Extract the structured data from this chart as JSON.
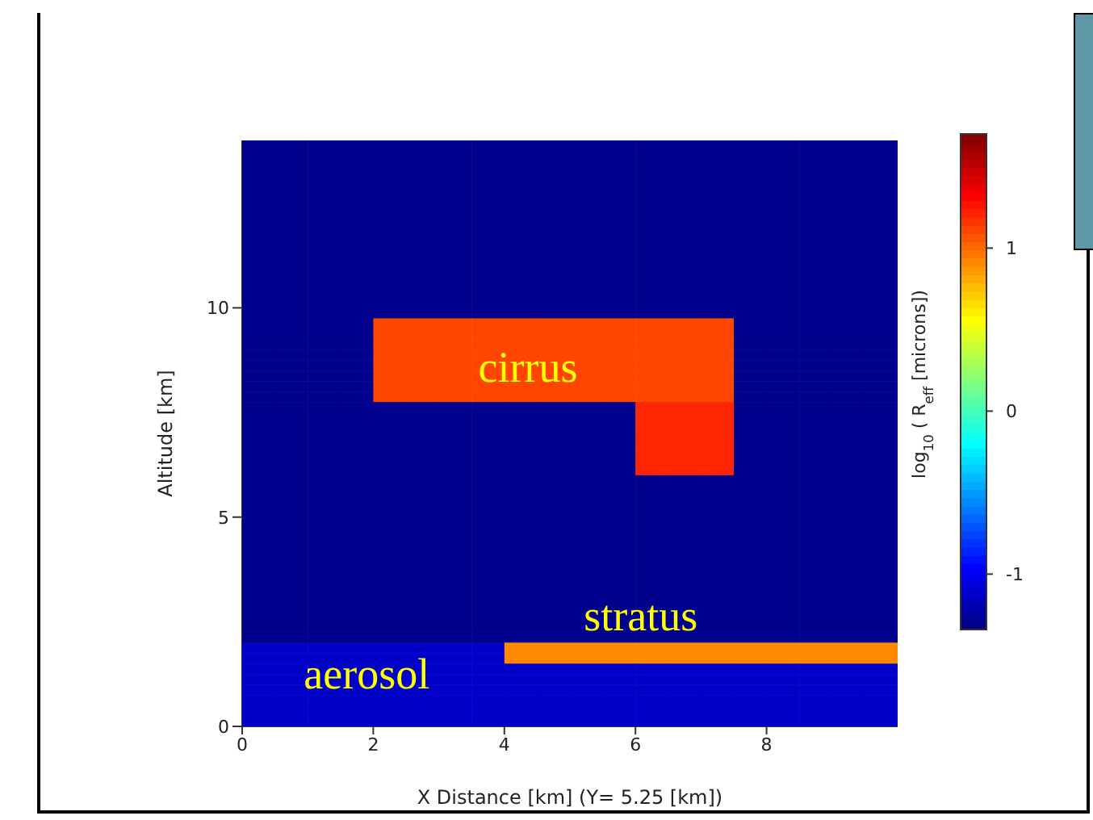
{
  "chart_data": {
    "type": "heatmap",
    "xlabel": "X Distance [km] (Y=  5.25 [km])",
    "ylabel": "Altitude [km]",
    "clabel": "log$_{10}$( R$_{eff}$[microns])",
    "xlim": [
      0,
      10
    ],
    "xticks": [
      0,
      2,
      4,
      6,
      8
    ],
    "ylim": [
      0,
      14
    ],
    "yticks": [
      0,
      5,
      10
    ],
    "clim": [
      -1.34,
      1.7
    ],
    "cticks": [
      -1,
      0,
      1
    ],
    "grid": false,
    "legend": false,
    "annotations": [
      "cirrus",
      "stratus",
      "aerosol"
    ],
    "cells": [
      [
        -1.3,
        -1.3,
        -1.3,
        -1.3,
        -1.3,
        -1.3,
        -1.3,
        -1.3,
        -1.3,
        -1.3,
        -1.3,
        -1.3,
        -1.3,
        -1.3,
        -1.3,
        -1.3,
        -1.3,
        -1.3,
        -1.3,
        -1.3
      ],
      [
        -1.3,
        -1.3,
        -1.3,
        -1.3,
        -1.3,
        -1.3,
        -1.3,
        -1.3,
        -1.3,
        -1.3,
        -1.3,
        -1.3,
        -1.3,
        -1.3,
        -1.3,
        -1.3,
        -1.3,
        -1.3,
        -1.3,
        -1.3
      ],
      [
        -1.3,
        -1.3,
        -1.3,
        -1.3,
        -1.3,
        -1.3,
        -1.3,
        -1.3,
        -1.3,
        -1.3,
        -1.3,
        -1.3,
        -1.3,
        -1.3,
        -1.3,
        -1.3,
        -1.3,
        -1.3,
        -1.3,
        -1.3
      ],
      [
        -1.3,
        -1.3,
        -1.3,
        -1.3,
        -1.3,
        -1.3,
        -1.3,
        -1.3,
        -1.3,
        -1.3,
        -1.3,
        -1.3,
        -1.3,
        -1.3,
        -1.3,
        -1.3,
        -1.3,
        -1.3,
        -1.3,
        -1.3
      ],
      [
        -1.3,
        -1.3,
        -1.3,
        -1.3,
        -1.3,
        -1.3,
        -1.3,
        -1.3,
        -1.3,
        -1.3,
        -1.3,
        -1.3,
        -1.3,
        -1.3,
        -1.3,
        -1.3,
        -1.3,
        -1.3,
        -1.3,
        -1.3
      ],
      [
        -1.3,
        -1.3,
        -1.3,
        -1.3,
        -1.3,
        -1.3,
        -1.3,
        -1.3,
        -1.3,
        -1.3,
        -1.3,
        -1.3,
        -1.3,
        -1.3,
        -1.3,
        -1.3,
        -1.3,
        -1.3,
        -1.3,
        -1.3
      ],
      [
        -1.3,
        -1.3,
        -1.3,
        -1.3,
        -1.3,
        -1.3,
        -1.3,
        -1.3,
        -1.3,
        -1.3,
        -1.3,
        -1.3,
        -1.3,
        -1.3,
        -1.3,
        -1.3,
        -1.3,
        -1.3,
        -1.3,
        -1.3
      ],
      [
        -1.3,
        -1.3,
        -1.3,
        -1.3,
        -1.3,
        -1.3,
        -1.3,
        -1.3,
        -1.3,
        -1.3,
        -1.3,
        -1.3,
        -1.3,
        -1.3,
        -1.3,
        -1.3,
        -1.3,
        -1.3,
        -1.3,
        -1.3
      ],
      [
        -1.3,
        -1.3,
        -1.3,
        -1.3,
        -1.3,
        -1.3,
        -1.3,
        -1.3,
        -1.3,
        -1.3,
        -1.3,
        -1.3,
        -1.3,
        -1.3,
        -1.3,
        -1.3,
        -1.3,
        -1.3,
        -1.3,
        -1.3
      ],
      [
        -1.3,
        -1.3,
        -1.3,
        -1.3,
        -1.3,
        -1.3,
        -1.3,
        -1.3,
        -1.3,
        -1.3,
        -1.3,
        -1.3,
        -1.3,
        -1.3,
        -1.3,
        -1.3,
        -1.3,
        -1.3,
        -1.3,
        -1.3
      ],
      [
        -1.3,
        -1.3,
        -1.3,
        -1.3,
        -1.3,
        -1.3,
        -1.3,
        -1.3,
        -1.3,
        -1.3,
        -1.3,
        -1.3,
        -1.3,
        -1.3,
        -1.3,
        -1.3,
        -1.3,
        -1.3,
        -1.3,
        -1.3
      ],
      [
        -1.3,
        -1.3,
        -1.3,
        -1.3,
        -1.3,
        -1.3,
        -1.3,
        -1.3,
        -1.3,
        -1.3,
        -1.3,
        -1.3,
        -1.3,
        -1.3,
        -1.3,
        -1.3,
        -1.3,
        -1.3,
        -1.3,
        -1.3
      ],
      [
        -1.3,
        -1.3,
        -1.3,
        -1.3,
        -1.3,
        -1.3,
        -1.3,
        -1.3,
        -1.3,
        -1.3,
        -1.3,
        -1.3,
        -1.3,
        -1.3,
        -1.3,
        -1.3,
        -1.3,
        -1.3,
        -1.3,
        -1.3
      ],
      [
        -1.3,
        -1.3,
        -1.3,
        -1.3,
        -1.3,
        -1.3,
        -1.3,
        -1.3,
        -1.3,
        -1.3,
        -1.3,
        -1.3,
        -1.3,
        -1.3,
        -1.3,
        -1.3,
        -1.3,
        -1.3,
        -1.3,
        -1.3
      ],
      [
        -1.3,
        -1.3,
        -1.3,
        -1.3,
        -1.3,
        -1.3,
        -1.3,
        -1.3,
        -1.3,
        -1.3,
        -1.3,
        -1.3,
        -1.3,
        -1.3,
        -1.3,
        -1.3,
        -1.3,
        -1.3,
        -1.3,
        -1.3
      ],
      [
        -1.3,
        -1.3,
        -1.3,
        -1.3,
        -1.3,
        -1.3,
        -1.3,
        -1.3,
        -1.3,
        -1.3,
        -1.3,
        -1.3,
        -1.3,
        -1.3,
        -1.3,
        -1.3,
        -1.3,
        -1.3,
        -1.3,
        -1.3
      ],
      [
        -1.3,
        -1.3,
        -1.3,
        -1.3,
        -1.3,
        -1.3,
        -1.3,
        -1.3,
        -1.3,
        -1.3,
        -1.3,
        -1.3,
        -1.3,
        -1.3,
        -1.3,
        -1.3,
        -1.3,
        -1.3,
        -1.3,
        -1.3
      ],
      [
        -1.3,
        -1.3,
        -1.3,
        -1.3,
        1.11,
        1.11,
        1.11,
        1.11,
        1.11,
        1.11,
        1.11,
        1.11,
        1.11,
        1.11,
        1.11,
        -1.3,
        -1.3,
        -1.3,
        -1.3,
        -1.3
      ],
      [
        -1.3,
        -1.3,
        -1.3,
        -1.3,
        1.11,
        1.11,
        1.11,
        1.11,
        1.11,
        1.11,
        1.11,
        1.11,
        1.11,
        1.11,
        1.11,
        -1.3,
        -1.3,
        -1.3,
        -1.3,
        -1.3
      ],
      [
        -1.3,
        -1.3,
        -1.3,
        -1.3,
        1.11,
        1.11,
        1.11,
        1.11,
        1.11,
        1.11,
        1.11,
        1.11,
        1.11,
        1.11,
        1.11,
        -1.3,
        -1.3,
        -1.3,
        -1.3,
        -1.3
      ],
      [
        -1.3,
        -1.3,
        -1.3,
        -1.3,
        1.11,
        1.11,
        1.11,
        1.11,
        1.11,
        1.11,
        1.11,
        1.11,
        1.11,
        1.11,
        1.11,
        -1.3,
        -1.3,
        -1.3,
        -1.3,
        -1.3
      ],
      [
        -1.3,
        -1.3,
        -1.3,
        -1.3,
        1.11,
        1.11,
        1.11,
        1.11,
        1.11,
        1.11,
        1.11,
        1.11,
        1.11,
        1.11,
        1.11,
        -1.3,
        -1.3,
        -1.3,
        -1.3,
        -1.3
      ],
      [
        -1.3,
        -1.3,
        -1.3,
        -1.3,
        1.11,
        1.11,
        1.11,
        1.11,
        1.11,
        1.11,
        1.11,
        1.11,
        1.11,
        1.11,
        1.11,
        -1.3,
        -1.3,
        -1.3,
        -1.3,
        -1.3
      ],
      [
        -1.3,
        -1.3,
        -1.3,
        -1.3,
        1.11,
        1.11,
        1.11,
        1.11,
        1.11,
        1.11,
        1.11,
        1.11,
        1.11,
        1.11,
        1.11,
        -1.3,
        -1.3,
        -1.3,
        -1.3,
        -1.3
      ],
      [
        -1.3,
        -1.3,
        -1.3,
        -1.3,
        1.11,
        1.11,
        1.11,
        1.11,
        1.11,
        1.11,
        1.11,
        1.11,
        1.11,
        1.11,
        1.11,
        -1.3,
        -1.3,
        -1.3,
        -1.3,
        -1.3
      ],
      [
        -1.3,
        -1.3,
        -1.3,
        -1.3,
        -1.3,
        -1.3,
        -1.3,
        -1.3,
        -1.3,
        -1.3,
        -1.3,
        -1.3,
        1.21,
        1.21,
        1.21,
        -1.3,
        -1.3,
        -1.3,
        -1.3,
        -1.3
      ],
      [
        -1.3,
        -1.3,
        -1.3,
        -1.3,
        -1.3,
        -1.3,
        -1.3,
        -1.3,
        -1.3,
        -1.3,
        -1.3,
        -1.3,
        1.21,
        1.21,
        1.21,
        -1.3,
        -1.3,
        -1.3,
        -1.3,
        -1.3
      ],
      [
        -1.3,
        -1.3,
        -1.3,
        -1.3,
        -1.3,
        -1.3,
        -1.3,
        -1.3,
        -1.3,
        -1.3,
        -1.3,
        -1.3,
        1.21,
        1.21,
        1.21,
        -1.3,
        -1.3,
        -1.3,
        -1.3,
        -1.3
      ],
      [
        -1.3,
        -1.3,
        -1.3,
        -1.3,
        -1.3,
        -1.3,
        -1.3,
        -1.3,
        -1.3,
        -1.3,
        -1.3,
        -1.3,
        1.21,
        1.21,
        1.21,
        -1.3,
        -1.3,
        -1.3,
        -1.3,
        -1.3
      ],
      [
        -1.3,
        -1.3,
        -1.3,
        -1.3,
        -1.3,
        -1.3,
        -1.3,
        -1.3,
        -1.3,
        -1.3,
        -1.3,
        -1.3,
        1.21,
        1.21,
        1.21,
        -1.3,
        -1.3,
        -1.3,
        -1.3,
        -1.3
      ],
      [
        -1.3,
        -1.3,
        -1.3,
        -1.3,
        -1.3,
        -1.3,
        -1.3,
        -1.3,
        -1.3,
        -1.3,
        -1.3,
        -1.3,
        1.21,
        1.21,
        1.21,
        -1.3,
        -1.3,
        -1.3,
        -1.3,
        -1.3
      ],
      [
        -1.3,
        -1.3,
        -1.3,
        -1.3,
        -1.3,
        -1.3,
        -1.3,
        -1.3,
        -1.3,
        -1.3,
        -1.3,
        -1.3,
        1.21,
        1.21,
        1.21,
        -1.3,
        -1.3,
        -1.3,
        -1.3,
        -1.3
      ],
      [
        -1.3,
        -1.3,
        -1.3,
        -1.3,
        -1.3,
        -1.3,
        -1.3,
        -1.3,
        -1.3,
        -1.3,
        -1.3,
        -1.3,
        -1.3,
        -1.3,
        -1.3,
        -1.3,
        -1.3,
        -1.3,
        -1.3,
        -1.3
      ],
      [
        -1.3,
        -1.3,
        -1.3,
        -1.3,
        -1.3,
        -1.3,
        -1.3,
        -1.3,
        -1.3,
        -1.3,
        -1.3,
        -1.3,
        -1.3,
        -1.3,
        -1.3,
        -1.3,
        -1.3,
        -1.3,
        -1.3,
        -1.3
      ],
      [
        -1.3,
        -1.3,
        -1.3,
        -1.3,
        -1.3,
        -1.3,
        -1.3,
        -1.3,
        -1.3,
        -1.3,
        -1.3,
        -1.3,
        -1.3,
        -1.3,
        -1.3,
        -1.3,
        -1.3,
        -1.3,
        -1.3,
        -1.3
      ],
      [
        -1.3,
        -1.3,
        -1.3,
        -1.3,
        -1.3,
        -1.3,
        -1.3,
        -1.3,
        -1.3,
        -1.3,
        -1.3,
        -1.3,
        -1.3,
        -1.3,
        -1.3,
        -1.3,
        -1.3,
        -1.3,
        -1.3,
        -1.3
      ],
      [
        -1.3,
        -1.3,
        -1.3,
        -1.3,
        -1.3,
        -1.3,
        -1.3,
        -1.3,
        -1.3,
        -1.3,
        -1.3,
        -1.3,
        -1.3,
        -1.3,
        -1.3,
        -1.3,
        -1.3,
        -1.3,
        -1.3,
        -1.3
      ],
      [
        -1.3,
        -1.3,
        -1.3,
        -1.3,
        -1.3,
        -1.3,
        -1.3,
        -1.3,
        -1.3,
        -1.3,
        -1.3,
        -1.3,
        -1.3,
        -1.3,
        -1.3,
        -1.3,
        -1.3,
        -1.3,
        -1.3,
        -1.3
      ],
      [
        -1.3,
        -1.3,
        -1.3,
        -1.3,
        -1.3,
        -1.3,
        -1.3,
        -1.3,
        -1.3,
        -1.3,
        -1.3,
        -1.3,
        -1.3,
        -1.3,
        -1.3,
        -1.3,
        -1.3,
        -1.3,
        -1.3,
        -1.3
      ],
      [
        -1.3,
        -1.3,
        -1.3,
        -1.3,
        -1.3,
        -1.3,
        -1.3,
        -1.3,
        -1.3,
        -1.3,
        -1.3,
        -1.3,
        -1.3,
        -1.3,
        -1.3,
        -1.3,
        -1.3,
        -1.3,
        -1.3,
        -1.3
      ],
      [
        -1.3,
        -1.3,
        -1.3,
        -1.3,
        -1.3,
        -1.3,
        -1.3,
        -1.3,
        -1.3,
        -1.3,
        -1.3,
        -1.3,
        -1.3,
        -1.3,
        -1.3,
        -1.3,
        -1.3,
        -1.3,
        -1.3,
        -1.3
      ],
      [
        -1.3,
        -1.3,
        -1.3,
        -1.3,
        -1.3,
        -1.3,
        -1.3,
        -1.3,
        -1.3,
        -1.3,
        -1.3,
        -1.3,
        -1.3,
        -1.3,
        -1.3,
        -1.3,
        -1.3,
        -1.3,
        -1.3,
        -1.3
      ],
      [
        -1.3,
        -1.3,
        -1.3,
        -1.3,
        -1.3,
        -1.3,
        -1.3,
        -1.3,
        -1.3,
        -1.3,
        -1.3,
        -1.3,
        -1.3,
        -1.3,
        -1.3,
        -1.3,
        -1.3,
        -1.3,
        -1.3,
        -1.3
      ],
      [
        -1.3,
        -1.3,
        -1.3,
        -1.3,
        -1.3,
        -1.3,
        -1.3,
        -1.3,
        -1.3,
        -1.3,
        -1.3,
        -1.3,
        -1.3,
        -1.3,
        -1.3,
        -1.3,
        -1.3,
        -1.3,
        -1.3,
        -1.3
      ],
      [
        -1.3,
        -1.3,
        -1.3,
        -1.3,
        -1.3,
        -1.3,
        -1.3,
        -1.3,
        -1.3,
        -1.3,
        -1.3,
        -1.3,
        -1.3,
        -1.3,
        -1.3,
        -1.3,
        -1.3,
        -1.3,
        -1.3,
        -1.3
      ],
      [
        -1.3,
        -1.3,
        -1.3,
        -1.3,
        -1.3,
        -1.3,
        -1.3,
        -1.3,
        -1.3,
        -1.3,
        -1.3,
        -1.3,
        -1.3,
        -1.3,
        -1.3,
        -1.3,
        -1.3,
        -1.3,
        -1.3,
        -1.3
      ],
      [
        -1.3,
        -1.3,
        -1.3,
        -1.3,
        -1.3,
        -1.3,
        -1.3,
        -1.3,
        -1.3,
        -1.3,
        -1.3,
        -1.3,
        -1.3,
        -1.3,
        -1.3,
        -1.3,
        -1.3,
        -1.3,
        -1.3,
        -1.3
      ],
      [
        -1.3,
        -1.3,
        -1.3,
        -1.3,
        -1.3,
        -1.3,
        -1.3,
        -1.3,
        -1.3,
        -1.3,
        -1.3,
        -1.3,
        -1.3,
        -1.3,
        -1.3,
        -1.3,
        -1.3,
        -1.3,
        -1.3,
        -1.3
      ],
      [
        -1.13,
        -1.13,
        -1.13,
        -1.13,
        -1.13,
        -1.13,
        -1.13,
        -1.13,
        0.91,
        0.91,
        0.91,
        0.91,
        0.91,
        0.91,
        0.91,
        0.91,
        0.91,
        0.91,
        0.91,
        0.91
      ],
      [
        -1.13,
        -1.13,
        -1.13,
        -1.13,
        -1.13,
        -1.13,
        -1.13,
        -1.13,
        0.91,
        0.91,
        0.91,
        0.91,
        0.91,
        0.91,
        0.91,
        0.91,
        0.91,
        0.91,
        0.91,
        0.91
      ],
      [
        -1.13,
        -1.13,
        -1.13,
        -1.13,
        -1.13,
        -1.13,
        -1.13,
        -1.13,
        -1.13,
        -1.13,
        -1.13,
        -1.13,
        -1.13,
        -1.13,
        -1.13,
        -1.13,
        -1.13,
        -1.13,
        -1.13,
        -1.13
      ],
      [
        -1.13,
        -1.13,
        -1.13,
        -1.13,
        -1.13,
        -1.13,
        -1.13,
        -1.13,
        -1.13,
        -1.13,
        -1.13,
        -1.13,
        -1.13,
        -1.13,
        -1.13,
        -1.13,
        -1.13,
        -1.13,
        -1.13,
        -1.13
      ],
      [
        -1.13,
        -1.13,
        -1.13,
        -1.13,
        -1.13,
        -1.13,
        -1.13,
        -1.13,
        -1.13,
        -1.13,
        -1.13,
        -1.13,
        -1.13,
        -1.13,
        -1.13,
        -1.13,
        -1.13,
        -1.13,
        -1.13,
        -1.13
      ],
      [
        -1.13,
        -1.13,
        -1.13,
        -1.13,
        -1.13,
        -1.13,
        -1.13,
        -1.13,
        -1.13,
        -1.13,
        -1.13,
        -1.13,
        -1.13,
        -1.13,
        -1.13,
        -1.13,
        -1.13,
        -1.13,
        -1.13,
        -1.13
      ],
      [
        -1.13,
        -1.13,
        -1.13,
        -1.13,
        -1.13,
        -1.13,
        -1.13,
        -1.13,
        -1.13,
        -1.13,
        -1.13,
        -1.13,
        -1.13,
        -1.13,
        -1.13,
        -1.13,
        -1.13,
        -1.13,
        -1.13,
        -1.13
      ],
      [
        -1.13,
        -1.13,
        -1.13,
        -1.13,
        -1.13,
        -1.13,
        -1.13,
        -1.13,
        -1.13,
        -1.13,
        -1.13,
        -1.13,
        -1.13,
        -1.13,
        -1.13,
        -1.13,
        -1.13,
        -1.13,
        -1.13,
        -1.13
      ]
    ]
  }
}
